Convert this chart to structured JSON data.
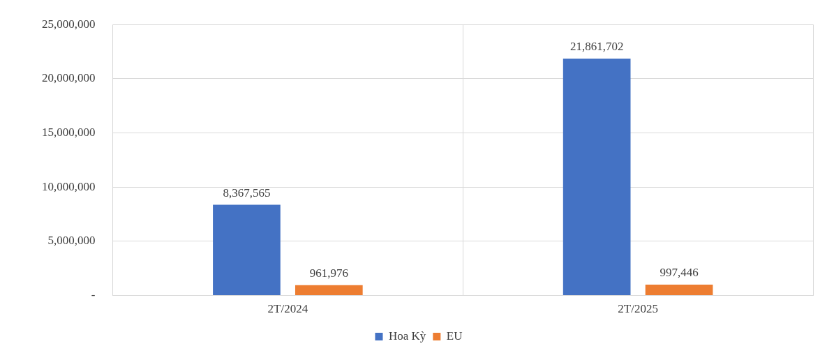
{
  "chart_data": {
    "type": "bar",
    "categories": [
      "2T/2024",
      "2T/2025"
    ],
    "series": [
      {
        "name": "Hoa Kỳ",
        "color": "#4472c4",
        "values": [
          8367565,
          21861702
        ],
        "value_labels": [
          "8,367,565",
          "21,861,702"
        ]
      },
      {
        "name": "EU",
        "color": "#ed7d31",
        "values": [
          961976,
          997446
        ],
        "value_labels": [
          "961,976",
          "997,446"
        ]
      }
    ],
    "ylim": [
      0,
      25000000
    ],
    "yticks": [
      {
        "value": 0,
        "label": "-"
      },
      {
        "value": 5000000,
        "label": "5,000,000"
      },
      {
        "value": 10000000,
        "label": "10,000,000"
      },
      {
        "value": 15000000,
        "label": "15,000,000"
      },
      {
        "value": 20000000,
        "label": "20,000,000"
      },
      {
        "value": 25000000,
        "label": "25,000,000"
      }
    ],
    "grid": true,
    "legend": "bottom"
  }
}
